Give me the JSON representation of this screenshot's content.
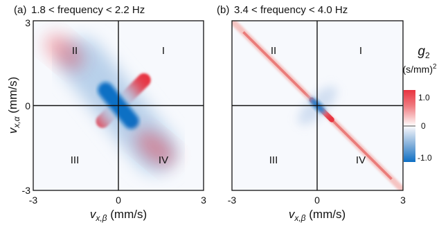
{
  "chart_data": [
    {
      "type": "heatmap",
      "panel_label": "(a)",
      "title": "1.8 < frequency < 2.2 Hz",
      "xlabel": "v",
      "xlabel_sub": "x,β",
      "xlabel_unit": " (mm/s)",
      "ylabel": "v",
      "ylabel_sub": "x,α",
      "ylabel_unit": " (mm/s)",
      "xlim": [
        -3,
        3
      ],
      "ylim": [
        -3,
        3
      ],
      "x_ticks": [
        "-3",
        "0",
        "3"
      ],
      "y_ticks": [
        "3",
        "0",
        "-3"
      ],
      "quadrants": [
        "II",
        "I",
        "III",
        "IV"
      ],
      "features": [
        {
          "kind": "positive-band",
          "from": [
            -0.55,
            -0.55
          ],
          "to": [
            0.9,
            0.9
          ],
          "value": 1.0
        },
        {
          "kind": "negative-band",
          "from": [
            -0.45,
            0.55
          ],
          "to": [
            0.45,
            -0.55
          ],
          "value": -1.0
        },
        {
          "kind": "positive-lobe",
          "center": [
            -1.9,
            1.9
          ],
          "value": 0.35
        },
        {
          "kind": "positive-lobe",
          "center": [
            1.3,
            -1.5
          ],
          "value": 0.4
        }
      ]
    },
    {
      "type": "heatmap",
      "panel_label": "(b)",
      "title": "3.4 < frequency < 4.0 Hz",
      "xlabel": "v",
      "xlabel_sub": "x,β",
      "xlabel_unit": " (mm/s)",
      "xlim": [
        -3,
        3
      ],
      "ylim": [
        -3,
        3
      ],
      "x_ticks": [
        "-3",
        "0",
        "3"
      ],
      "quadrants": [
        "II",
        "I",
        "III",
        "IV"
      ],
      "features": [
        {
          "kind": "anti-diagonal-ridge",
          "from": [
            -3,
            3
          ],
          "to": [
            3,
            -3
          ],
          "value": 0.5
        },
        {
          "kind": "positive-core",
          "from": [
            -0.2,
            0.2
          ],
          "to": [
            0.5,
            -0.5
          ],
          "value": 1.0
        },
        {
          "kind": "negative-cloud",
          "center": [
            0,
            0
          ],
          "value": -0.35
        }
      ]
    }
  ],
  "colorbar": {
    "title": "g",
    "title_sub": "2",
    "unit": "(s/mm)",
    "unit_sup": "2",
    "ticks": [
      "1.0",
      "0",
      "-1.0"
    ],
    "range": [
      -1.2,
      1.2
    ],
    "colors": {
      "positive": "#e8333f",
      "zero": "#ffffff",
      "negative": "#0e6fc4"
    }
  }
}
